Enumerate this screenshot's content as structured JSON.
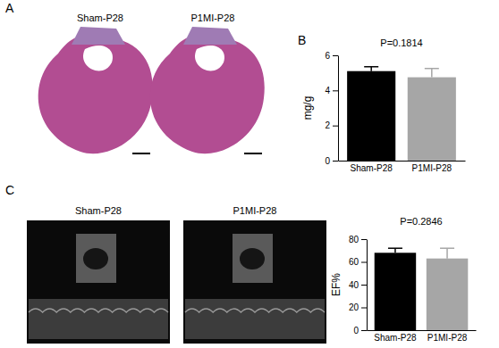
{
  "panels": {
    "labels": [
      "A",
      "B",
      "C"
    ],
    "image_captions": [
      [
        "Sham-P28",
        "P1MI-P28"
      ],
      [
        "Sham-P28",
        "P1MI-P28"
      ]
    ]
  },
  "chart_data": [
    {
      "type": "bar",
      "annotation": "P=0.1814",
      "y_label": "mg/g",
      "categories": [
        "Sham-P28",
        "P1MI-P28"
      ],
      "values": [
        5.1,
        4.75
      ],
      "errors": [
        0.25,
        0.5
      ],
      "colors": [
        "#000000",
        "#a6a6a6"
      ],
      "ylim": [
        0,
        6
      ],
      "yticks": [
        0,
        2,
        4,
        6
      ]
    },
    {
      "type": "bar",
      "annotation": "P=0.2846",
      "y_label": "EF%",
      "categories": [
        "Sham-P28",
        "P1MI-P28"
      ],
      "values": [
        68,
        63
      ],
      "errors": [
        4,
        9
      ],
      "colors": [
        "#000000",
        "#a6a6a6"
      ],
      "ylim": [
        0,
        80
      ],
      "yticks": [
        0,
        20,
        40,
        60,
        80
      ]
    }
  ]
}
